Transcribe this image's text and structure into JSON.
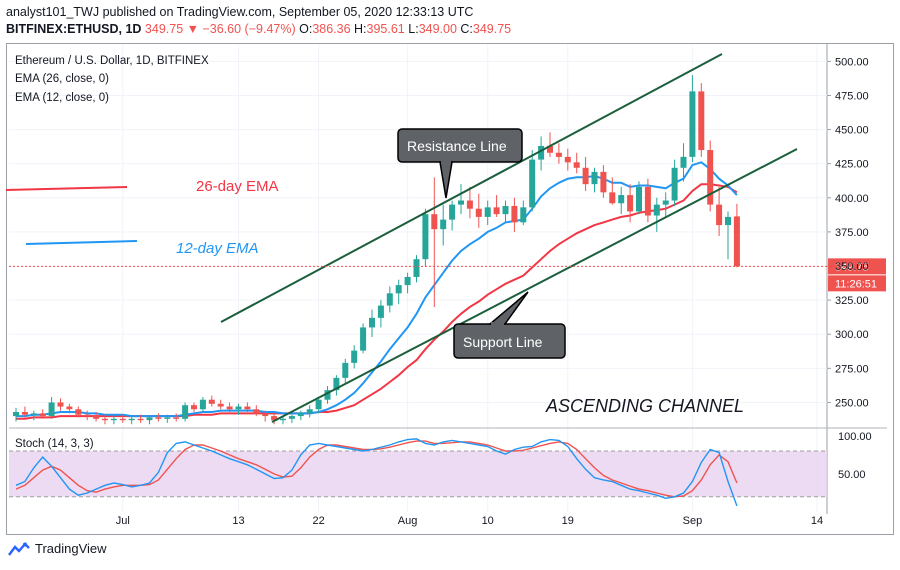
{
  "header": {
    "publisher_line": "analyst101_TWJ published on TradingView.com, September 05, 2020 12:33:13 UTC",
    "symbol": "BITFINEX:ETHUSD, 1D",
    "last": "349.75",
    "change_arrow": "▼",
    "change": "−36.60 (−9.47%)",
    "o_label": "O:",
    "o_val": "386.36",
    "h_label": "H:",
    "h_val": "395.61",
    "l_label": "L:",
    "l_val": "349.00",
    "c_label": "C:",
    "c_val": "349.75"
  },
  "legend": {
    "title": "Ethereum / U.S. Dollar, 1D, BITFINEX",
    "ema26": "EMA (26, close, 0)",
    "ema12": "EMA (12, close, 0)",
    "stoch": "Stoch (14, 3, 3)"
  },
  "annotations": {
    "ema26_label": "26-day EMA",
    "ema12_label": "12-day EMA",
    "resistance": "Resistance Line",
    "support": "Support Line",
    "channel": "ASCENDING CHANNEL"
  },
  "price_tags": {
    "last": "349.75",
    "countdown": "11:26:51"
  },
  "footer": {
    "brand": "TradingView"
  },
  "colors": {
    "up": "#26a69a",
    "down": "#ef5350",
    "ema26": "#f23645",
    "ema12": "#2196f3",
    "stoch_k": "#2196f3",
    "stoch_d": "#ef5350",
    "stoch_band": "#e1bee7",
    "channel": "#1b5e3c"
  },
  "chart_data": {
    "type": "candlestick",
    "x_tick_labels": [
      "Jul",
      "13",
      "22",
      "Aug",
      "10",
      "19",
      "Sep",
      "14"
    ],
    "y_tick_labels": [
      "250.00",
      "275.00",
      "300.00",
      "325.00",
      "350.00",
      "375.00",
      "400.00",
      "425.00",
      "450.00",
      "475.00",
      "500.00"
    ],
    "ylim": [
      232,
      512
    ],
    "candles": [
      {
        "o": 240,
        "h": 246,
        "l": 236,
        "c": 243
      },
      {
        "o": 243,
        "h": 247,
        "l": 239,
        "c": 241
      },
      {
        "o": 241,
        "h": 244,
        "l": 237,
        "c": 242
      },
      {
        "o": 242,
        "h": 245,
        "l": 238,
        "c": 240
      },
      {
        "o": 240,
        "h": 254,
        "l": 238,
        "c": 250
      },
      {
        "o": 250,
        "h": 253,
        "l": 244,
        "c": 247
      },
      {
        "o": 247,
        "h": 249,
        "l": 242,
        "c": 245
      },
      {
        "o": 245,
        "h": 247,
        "l": 239,
        "c": 241
      },
      {
        "o": 241,
        "h": 244,
        "l": 237,
        "c": 240
      },
      {
        "o": 240,
        "h": 243,
        "l": 236,
        "c": 238
      },
      {
        "o": 238,
        "h": 241,
        "l": 234,
        "c": 237
      },
      {
        "o": 237,
        "h": 240,
        "l": 234,
        "c": 238
      },
      {
        "o": 238,
        "h": 241,
        "l": 235,
        "c": 237
      },
      {
        "o": 237,
        "h": 240,
        "l": 234,
        "c": 238
      },
      {
        "o": 238,
        "h": 241,
        "l": 235,
        "c": 237
      },
      {
        "o": 237,
        "h": 240,
        "l": 234,
        "c": 239
      },
      {
        "o": 239,
        "h": 242,
        "l": 236,
        "c": 238
      },
      {
        "o": 238,
        "h": 241,
        "l": 235,
        "c": 239
      },
      {
        "o": 239,
        "h": 242,
        "l": 236,
        "c": 238
      },
      {
        "o": 238,
        "h": 250,
        "l": 236,
        "c": 248
      },
      {
        "o": 248,
        "h": 250,
        "l": 243,
        "c": 245
      },
      {
        "o": 245,
        "h": 254,
        "l": 243,
        "c": 252
      },
      {
        "o": 252,
        "h": 255,
        "l": 247,
        "c": 249
      },
      {
        "o": 249,
        "h": 252,
        "l": 245,
        "c": 247
      },
      {
        "o": 247,
        "h": 250,
        "l": 243,
        "c": 245
      },
      {
        "o": 245,
        "h": 249,
        "l": 241,
        "c": 247
      },
      {
        "o": 247,
        "h": 250,
        "l": 243,
        "c": 245
      },
      {
        "o": 245,
        "h": 248,
        "l": 240,
        "c": 242
      },
      {
        "o": 242,
        "h": 244,
        "l": 236,
        "c": 240
      },
      {
        "o": 240,
        "h": 242,
        "l": 234,
        "c": 237
      },
      {
        "o": 237,
        "h": 240,
        "l": 234,
        "c": 238
      },
      {
        "o": 238,
        "h": 241,
        "l": 235,
        "c": 240
      },
      {
        "o": 240,
        "h": 244,
        "l": 237,
        "c": 242
      },
      {
        "o": 242,
        "h": 248,
        "l": 239,
        "c": 245
      },
      {
        "o": 245,
        "h": 254,
        "l": 242,
        "c": 252
      },
      {
        "o": 252,
        "h": 262,
        "l": 249,
        "c": 259
      },
      {
        "o": 259,
        "h": 270,
        "l": 255,
        "c": 268
      },
      {
        "o": 268,
        "h": 282,
        "l": 264,
        "c": 279
      },
      {
        "o": 279,
        "h": 292,
        "l": 275,
        "c": 288
      },
      {
        "o": 288,
        "h": 308,
        "l": 286,
        "c": 305
      },
      {
        "o": 305,
        "h": 318,
        "l": 298,
        "c": 312
      },
      {
        "o": 312,
        "h": 325,
        "l": 305,
        "c": 321
      },
      {
        "o": 321,
        "h": 335,
        "l": 316,
        "c": 330
      },
      {
        "o": 330,
        "h": 340,
        "l": 322,
        "c": 336
      },
      {
        "o": 336,
        "h": 345,
        "l": 330,
        "c": 342
      },
      {
        "o": 342,
        "h": 358,
        "l": 338,
        "c": 355
      },
      {
        "o": 355,
        "h": 392,
        "l": 350,
        "c": 388
      },
      {
        "o": 388,
        "h": 415,
        "l": 320,
        "c": 377
      },
      {
        "o": 377,
        "h": 395,
        "l": 365,
        "c": 384
      },
      {
        "o": 384,
        "h": 398,
        "l": 376,
        "c": 395
      },
      {
        "o": 395,
        "h": 410,
        "l": 388,
        "c": 398
      },
      {
        "o": 398,
        "h": 408,
        "l": 385,
        "c": 392
      },
      {
        "o": 392,
        "h": 403,
        "l": 378,
        "c": 386
      },
      {
        "o": 386,
        "h": 398,
        "l": 380,
        "c": 393
      },
      {
        "o": 393,
        "h": 402,
        "l": 386,
        "c": 388
      },
      {
        "o": 388,
        "h": 398,
        "l": 382,
        "c": 394
      },
      {
        "o": 394,
        "h": 400,
        "l": 375,
        "c": 382
      },
      {
        "o": 382,
        "h": 398,
        "l": 380,
        "c": 393
      },
      {
        "o": 393,
        "h": 435,
        "l": 390,
        "c": 428
      },
      {
        "o": 428,
        "h": 445,
        "l": 420,
        "c": 438
      },
      {
        "o": 438,
        "h": 448,
        "l": 430,
        "c": 433
      },
      {
        "o": 433,
        "h": 440,
        "l": 425,
        "c": 430
      },
      {
        "o": 430,
        "h": 436,
        "l": 420,
        "c": 426
      },
      {
        "o": 426,
        "h": 433,
        "l": 418,
        "c": 422
      },
      {
        "o": 422,
        "h": 430,
        "l": 405,
        "c": 410
      },
      {
        "o": 410,
        "h": 422,
        "l": 404,
        "c": 419
      },
      {
        "o": 419,
        "h": 424,
        "l": 400,
        "c": 404
      },
      {
        "o": 404,
        "h": 415,
        "l": 395,
        "c": 396
      },
      {
        "o": 396,
        "h": 408,
        "l": 388,
        "c": 402
      },
      {
        "o": 402,
        "h": 410,
        "l": 382,
        "c": 390
      },
      {
        "o": 390,
        "h": 412,
        "l": 388,
        "c": 408
      },
      {
        "o": 408,
        "h": 414,
        "l": 382,
        "c": 387
      },
      {
        "o": 387,
        "h": 400,
        "l": 375,
        "c": 395
      },
      {
        "o": 395,
        "h": 404,
        "l": 385,
        "c": 398
      },
      {
        "o": 398,
        "h": 428,
        "l": 394,
        "c": 422
      },
      {
        "o": 422,
        "h": 440,
        "l": 412,
        "c": 430
      },
      {
        "o": 430,
        "h": 490,
        "l": 426,
        "c": 478
      },
      {
        "o": 478,
        "h": 484,
        "l": 430,
        "c": 435
      },
      {
        "o": 435,
        "h": 442,
        "l": 390,
        "c": 395
      },
      {
        "o": 395,
        "h": 408,
        "l": 372,
        "c": 380
      },
      {
        "o": 380,
        "h": 390,
        "l": 355,
        "c": 386
      },
      {
        "o": 386.36,
        "h": 395.61,
        "l": 349,
        "c": 349.75
      }
    ],
    "ema12": [
      240,
      240,
      241,
      241,
      242,
      243,
      243,
      243,
      242,
      242,
      241,
      241,
      241,
      240,
      240,
      240,
      240,
      240,
      240,
      241,
      242,
      243,
      243,
      244,
      244,
      244,
      244,
      244,
      243,
      243,
      242,
      242,
      242,
      242,
      243,
      245,
      248,
      252,
      257,
      264,
      272,
      280,
      289,
      297,
      305,
      315,
      327,
      336,
      345,
      354,
      361,
      366,
      370,
      375,
      378,
      382,
      383,
      384,
      392,
      401,
      407,
      411,
      414,
      415,
      415,
      416,
      414,
      411,
      411,
      408,
      409,
      409,
      408,
      407,
      411,
      414,
      424,
      426,
      421,
      414,
      409,
      402
    ],
    "ema26": [
      238,
      238,
      239,
      239,
      239,
      240,
      240,
      240,
      240,
      240,
      240,
      240,
      240,
      240,
      240,
      240,
      240,
      240,
      240,
      240,
      241,
      241,
      241,
      242,
      242,
      242,
      242,
      242,
      242,
      242,
      242,
      242,
      242,
      242,
      243,
      243,
      244,
      246,
      248,
      252,
      256,
      260,
      265,
      270,
      276,
      281,
      289,
      296,
      302,
      309,
      315,
      320,
      324,
      329,
      333,
      337,
      340,
      343,
      349,
      355,
      361,
      366,
      370,
      374,
      377,
      380,
      382,
      384,
      386,
      387,
      389,
      390,
      391,
      392,
      395,
      398,
      405,
      410,
      410,
      409,
      408,
      404
    ],
    "stoch_ylim": [
      0,
      105
    ],
    "stoch_ticks": [
      "50.00",
      "100.00"
    ],
    "stoch_k": [
      35,
      40,
      58,
      72,
      60,
      45,
      30,
      22,
      25,
      30,
      35,
      38,
      36,
      33,
      35,
      38,
      52,
      78,
      90,
      92,
      88,
      84,
      80,
      75,
      70,
      66,
      62,
      56,
      50,
      44,
      45,
      55,
      75,
      88,
      90,
      88,
      86,
      84,
      82,
      80,
      82,
      85,
      88,
      92,
      95,
      96,
      90,
      88,
      92,
      94,
      92,
      90,
      88,
      86,
      80,
      76,
      82,
      85,
      86,
      92,
      95,
      94,
      86,
      70,
      56,
      45,
      42,
      40,
      35,
      30,
      28,
      25,
      22,
      18,
      20,
      25,
      40,
      65,
      82,
      78,
      40,
      8
    ],
    "stoch_d": [
      30,
      35,
      45,
      55,
      60,
      55,
      45,
      35,
      28,
      26,
      30,
      33,
      35,
      35,
      35,
      36,
      42,
      56,
      70,
      82,
      88,
      88,
      84,
      80,
      75,
      70,
      66,
      62,
      56,
      50,
      46,
      47,
      58,
      72,
      82,
      88,
      88,
      86,
      84,
      82,
      82,
      83,
      85,
      88,
      91,
      93,
      93,
      90,
      90,
      91,
      92,
      92,
      90,
      88,
      84,
      80,
      80,
      81,
      84,
      87,
      90,
      92,
      90,
      82,
      70,
      58,
      48,
      42,
      38,
      34,
      30,
      28,
      25,
      22,
      20,
      21,
      28,
      42,
      62,
      75,
      66,
      38
    ]
  }
}
